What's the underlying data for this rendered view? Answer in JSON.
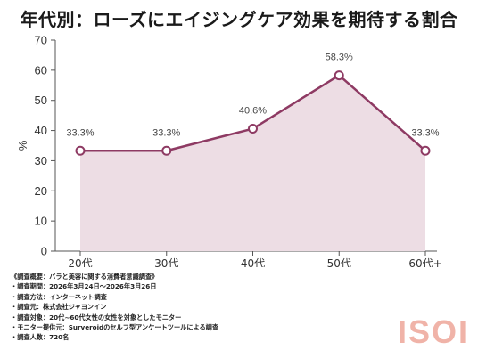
{
  "title": "年代別：ローズにエイジングケア効果を期待する割合",
  "chart_data": {
    "type": "area",
    "title": "年代別：ローズにエイジングケア効果を期待する割合",
    "categories": [
      "20代",
      "30代",
      "40代",
      "50代",
      "60代+"
    ],
    "values": [
      33.3,
      33.3,
      40.6,
      58.3,
      33.3
    ],
    "data_labels": [
      "33.3%",
      "33.3%",
      "40.6%",
      "58.3%",
      "33.3%"
    ],
    "xlabel": "",
    "ylabel": "%",
    "ylim": [
      0,
      70
    ],
    "yticks": [
      0,
      10,
      20,
      30,
      40,
      50,
      60,
      70
    ],
    "grid": false,
    "legend": "none",
    "line_color": "#8e3a63",
    "fill_color": "#eddde4"
  },
  "notes": [
    "《調査概要：バラと美容に関する消費者意識調査》",
    "・調査期間：2026年3月24日～2026年3月26日",
    "・調査方法：インターネット調査",
    "・調査元：株式会社ジャヨンイン",
    "・調査対象：20代~60代女性の女性を対象としたモニター",
    "・モニター提供元：Surveroidのセルフ型アンケートツールによる調査",
    "・調査人数：720名"
  ],
  "logo": "ISOI"
}
